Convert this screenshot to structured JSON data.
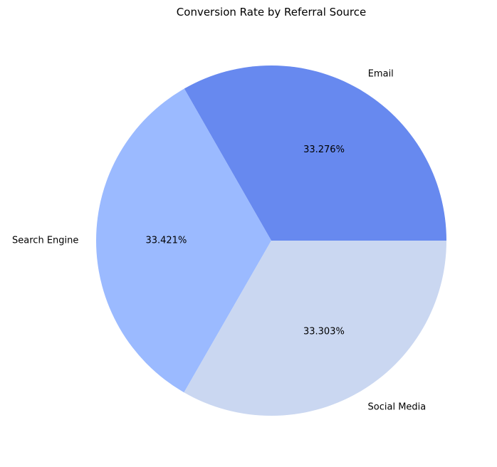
{
  "chart_data": {
    "type": "pie",
    "title": "Conversion Rate by Referral Source",
    "slices": [
      {
        "label": "Email",
        "value": 33.276,
        "pct_label": "33.276%",
        "color": "#6789ef"
      },
      {
        "label": "Search Engine",
        "value": 33.421,
        "pct_label": "33.421%",
        "color": "#9bbaff"
      },
      {
        "label": "Social Media",
        "value": 33.303,
        "pct_label": "33.303%",
        "color": "#cad7f1"
      }
    ],
    "start_angle_deg": 0,
    "direction": "counterclockwise"
  }
}
